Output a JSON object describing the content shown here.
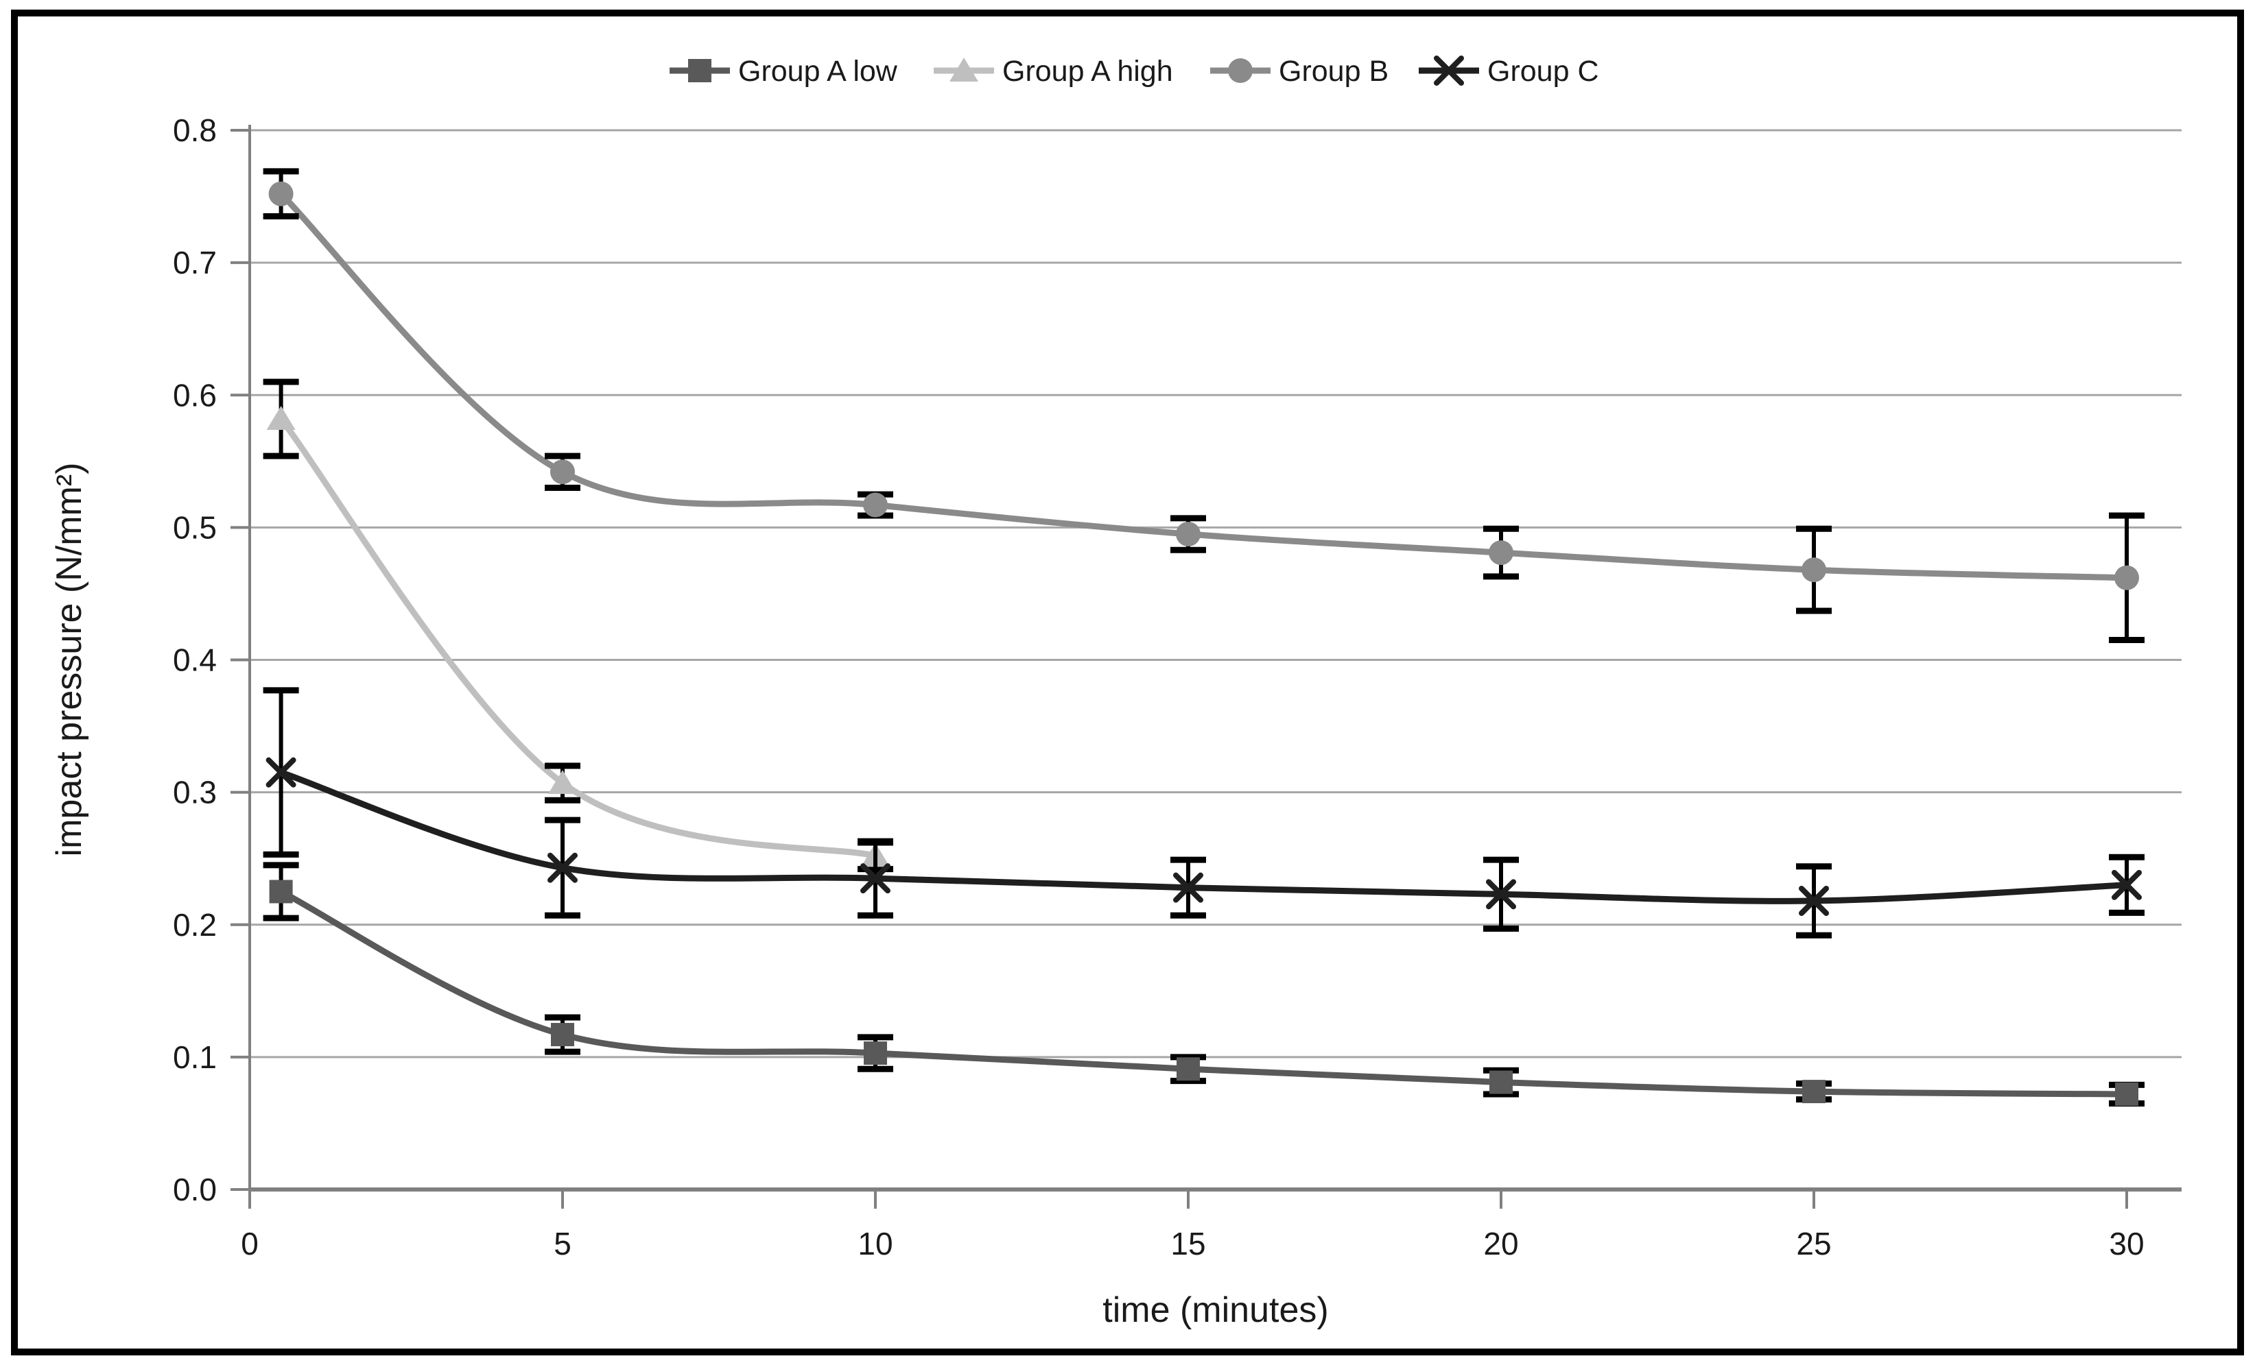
{
  "chart_data": {
    "type": "line",
    "title": "",
    "xlabel": "time (minutes)",
    "ylabel": "impact pressure (N/mm²)",
    "xlim": [
      0,
      31
    ],
    "ylim": [
      0.0,
      0.8
    ],
    "x_ticks": [
      0,
      5,
      10,
      15,
      20,
      25,
      30
    ],
    "y_ticks": [
      0.0,
      0.1,
      0.2,
      0.3,
      0.4,
      0.5,
      0.6,
      0.7,
      0.8
    ],
    "y_tick_decimals": 1,
    "grid": "horizontal",
    "legend_position": "top",
    "smoothed_lines": true,
    "error_bars": true,
    "error_bar_color": "#000000",
    "axis_color": "#808080",
    "gridline_color": "#a6a6a6",
    "text_color": "#1a1a1a",
    "frame_color": "#000000",
    "background_color": "#ffffff",
    "series": [
      {
        "name": "Group A low",
        "marker": "square",
        "color": "#595959",
        "x": [
          0.5,
          5,
          10,
          15,
          20,
          25,
          30
        ],
        "y": [
          0.225,
          0.117,
          0.103,
          0.091,
          0.081,
          0.074,
          0.072
        ],
        "err": [
          0.02,
          0.013,
          0.012,
          0.009,
          0.009,
          0.006,
          0.007
        ]
      },
      {
        "name": "Group A high",
        "marker": "triangle",
        "color": "#bfbfbf",
        "x": [
          0.5,
          5,
          10
        ],
        "y": [
          0.582,
          0.307,
          0.252
        ],
        "err": [
          0.028,
          0.013,
          0.01
        ]
      },
      {
        "name": "Group B",
        "marker": "circle",
        "color": "#8a8a8a",
        "x": [
          0.5,
          5,
          10,
          15,
          20,
          25,
          30
        ],
        "y": [
          0.752,
          0.542,
          0.517,
          0.495,
          0.481,
          0.468,
          0.462
        ],
        "err": [
          0.017,
          0.012,
          0.008,
          0.012,
          0.018,
          0.031,
          0.047
        ]
      },
      {
        "name": "Group C",
        "marker": "x",
        "color": "#1f1f1f",
        "x": [
          0.5,
          5,
          10,
          15,
          20,
          25,
          30
        ],
        "y": [
          0.315,
          0.243,
          0.235,
          0.228,
          0.223,
          0.218,
          0.23
        ],
        "err": [
          0.062,
          0.036,
          0.028,
          0.021,
          0.026,
          0.026,
          0.021
        ]
      }
    ]
  }
}
